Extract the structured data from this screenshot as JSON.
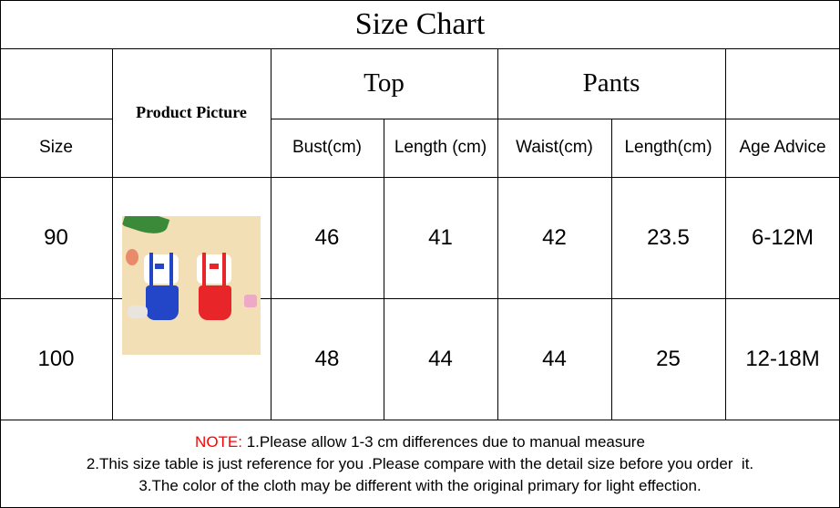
{
  "title": "Size Chart",
  "headers": {
    "product_picture": "Product Picture",
    "top": "Top",
    "pants": "Pants",
    "size": "Size",
    "bust": "Bust(cm)",
    "top_length": "Length (cm)",
    "waist": "Waist(cm)",
    "pants_length": "Length(cm)",
    "age": "Age Advice"
  },
  "rows": [
    {
      "size": "90",
      "bust": "46",
      "top_length": "41",
      "waist": "42",
      "pants_length": "23.5",
      "age": "6-12M"
    },
    {
      "size": "100",
      "bust": "48",
      "top_length": "44",
      "waist": "44",
      "pants_length": "25",
      "age": "12-18M"
    }
  ],
  "notes": {
    "prefix": "NOTE:",
    "line1": " 1.Please allow 1-3 cm differences due to manual measure",
    "line2": "2.This size table is just reference for you .Please compare with the detail size before you order  it.",
    "line3": "3.The color of the cloth may be different with the original primary for light effection."
  },
  "colors": {
    "note_prefix": "#ff0000",
    "outfit_blue": "#2346c8",
    "outfit_red": "#e8262a"
  }
}
